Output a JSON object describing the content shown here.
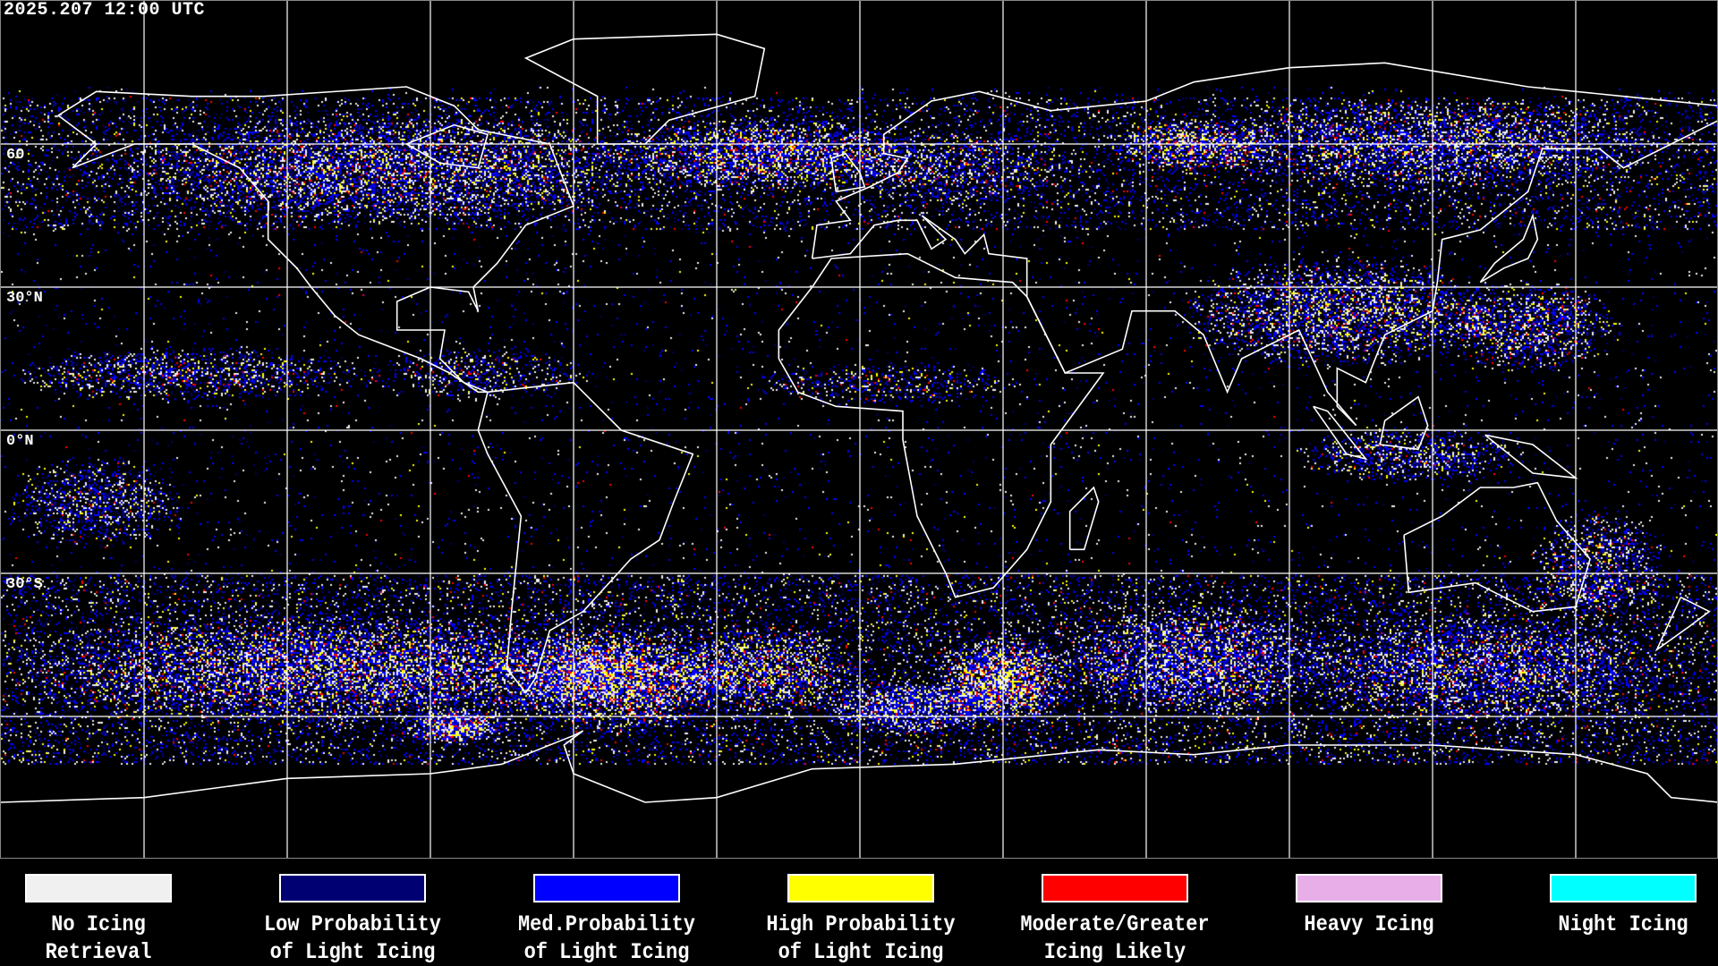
{
  "timestamp": "2025.207 12:00 UTC",
  "latitude_labels": [
    "60",
    "30°N",
    "0°N",
    "30°S"
  ],
  "map": {
    "projection": "equirectangular",
    "background": "#000000",
    "coastline_color": "#ffffff",
    "grid_color": "#ffffff"
  },
  "legend": [
    {
      "line1": "No Icing",
      "line2": "Retrieval",
      "color": "#f0f0f0"
    },
    {
      "line1": "Low Probability",
      "line2": "of Light Icing",
      "color": "#000073"
    },
    {
      "line1": "Med.Probability",
      "line2": "of Light Icing",
      "color": "#0000ff"
    },
    {
      "line1": "High Probability",
      "line2": "of Light Icing",
      "color": "#ffff00"
    },
    {
      "line1": "Moderate/Greater",
      "line2": "Icing Likely",
      "color": "#ff0000"
    },
    {
      "line1": "Heavy Icing",
      "line2": "",
      "color": "#e8aee8"
    },
    {
      "line1": "Night Icing",
      "line2": "",
      "color": "#00ffff"
    }
  ]
}
